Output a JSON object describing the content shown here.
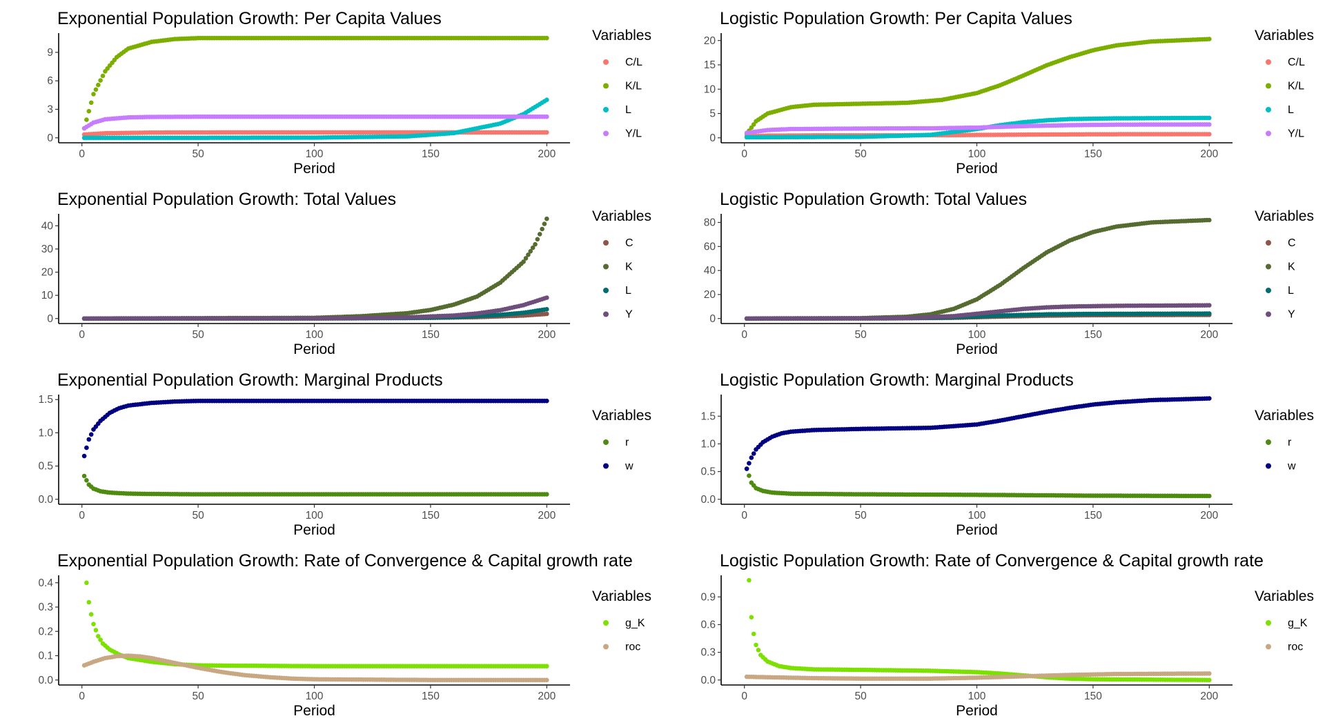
{
  "chart_data": [
    {
      "type": "scatter",
      "title": "Exponential Population Growth: Per Capita Values",
      "xlabel": "Period",
      "ylabel": "",
      "xlim": [
        0,
        200
      ],
      "ylim": [
        0,
        10.5
      ],
      "xticks": [
        0,
        50,
        100,
        150,
        200
      ],
      "yticks": [
        0,
        3,
        6,
        9
      ],
      "legend_title": "Variables",
      "legend_position": "right",
      "grid": false,
      "series": [
        {
          "name": "C/L",
          "color": "#F8766D",
          "x": [
            1,
            10,
            30,
            60,
            100,
            150,
            200
          ],
          "y": [
            0.35,
            0.48,
            0.55,
            0.57,
            0.57,
            0.57,
            0.57
          ]
        },
        {
          "name": "K/L",
          "color": "#7CAE00",
          "x": [
            1,
            5,
            10,
            15,
            20,
            30,
            40,
            50,
            75,
            100,
            150,
            200
          ],
          "y": [
            1.0,
            4.6,
            7.0,
            8.5,
            9.4,
            10.1,
            10.4,
            10.5,
            10.5,
            10.5,
            10.5,
            10.5
          ]
        },
        {
          "name": "L",
          "color": "#00BFC4",
          "x": [
            1,
            50,
            100,
            140,
            160,
            180,
            190,
            200
          ],
          "y": [
            0.0,
            0.0,
            0.02,
            0.15,
            0.5,
            1.5,
            2.5,
            4.0
          ]
        },
        {
          "name": "Y/L",
          "color": "#C77CFF",
          "x": [
            1,
            5,
            10,
            20,
            30,
            50,
            100,
            150,
            200
          ],
          "y": [
            1.0,
            1.6,
            1.95,
            2.15,
            2.2,
            2.22,
            2.22,
            2.22,
            2.22
          ]
        }
      ]
    },
    {
      "type": "scatter",
      "title": "Logistic Population Growth: Per Capita Values",
      "xlabel": "Period",
      "ylabel": "",
      "xlim": [
        0,
        200
      ],
      "ylim": [
        0,
        20.5
      ],
      "xticks": [
        0,
        50,
        100,
        150,
        200
      ],
      "yticks": [
        0,
        5,
        10,
        15,
        20
      ],
      "legend_title": "Variables",
      "legend_position": "right",
      "grid": false,
      "series": [
        {
          "name": "C/L",
          "color": "#F8766D",
          "x": [
            1,
            10,
            30,
            60,
            90,
            110,
            130,
            150,
            200
          ],
          "y": [
            0.3,
            0.45,
            0.5,
            0.5,
            0.55,
            0.62,
            0.68,
            0.72,
            0.75
          ]
        },
        {
          "name": "K/L",
          "color": "#7CAE00",
          "x": [
            1,
            5,
            10,
            20,
            30,
            50,
            70,
            85,
            100,
            110,
            120,
            130,
            140,
            150,
            160,
            175,
            200
          ],
          "y": [
            0.8,
            3.4,
            5.0,
            6.3,
            6.8,
            7.0,
            7.2,
            7.8,
            9.2,
            10.8,
            12.8,
            14.9,
            16.6,
            18.0,
            19.0,
            19.8,
            20.3
          ]
        },
        {
          "name": "L",
          "color": "#00BFC4",
          "x": [
            1,
            50,
            80,
            100,
            110,
            120,
            130,
            140,
            160,
            200
          ],
          "y": [
            0.1,
            0.2,
            0.6,
            1.8,
            2.6,
            3.2,
            3.6,
            3.85,
            4.0,
            4.1
          ]
        },
        {
          "name": "Y/L",
          "color": "#C77CFF",
          "x": [
            1,
            10,
            20,
            50,
            80,
            100,
            120,
            140,
            160,
            200
          ],
          "y": [
            1.0,
            1.6,
            1.8,
            1.9,
            1.95,
            2.1,
            2.4,
            2.6,
            2.7,
            2.75
          ]
        }
      ]
    },
    {
      "type": "scatter",
      "title": "Exponential Population Growth: Total Values",
      "xlabel": "Period",
      "ylabel": "",
      "xlim": [
        0,
        200
      ],
      "ylim": [
        0,
        43
      ],
      "xticks": [
        0,
        50,
        100,
        150,
        200
      ],
      "yticks": [
        0,
        10,
        20,
        30,
        40
      ],
      "legend_title": "Variables",
      "legend_position": "right",
      "grid": false,
      "series": [
        {
          "name": "C",
          "color": "#8C564B",
          "x": [
            1,
            100,
            150,
            170,
            190,
            200
          ],
          "y": [
            0.0,
            0.04,
            0.3,
            0.6,
            1.3,
            2.0
          ]
        },
        {
          "name": "K",
          "color": "#556B2F",
          "x": [
            1,
            100,
            120,
            140,
            150,
            160,
            170,
            180,
            190,
            195,
            200
          ],
          "y": [
            0.0,
            0.3,
            1.0,
            2.3,
            3.7,
            6.0,
            9.5,
            15.5,
            24.5,
            32.0,
            43.0
          ]
        },
        {
          "name": "L",
          "color": "#006D6F",
          "x": [
            1,
            100,
            140,
            160,
            180,
            190,
            200
          ],
          "y": [
            0.0,
            0.02,
            0.25,
            0.6,
            1.6,
            2.5,
            4.0
          ]
        },
        {
          "name": "Y",
          "color": "#6E4E7A",
          "x": [
            1,
            100,
            140,
            160,
            170,
            180,
            190,
            200
          ],
          "y": [
            0.0,
            0.05,
            0.5,
            1.3,
            2.2,
            3.6,
            5.8,
            9.0
          ]
        }
      ]
    },
    {
      "type": "scatter",
      "title": "Logistic Population Growth: Total Values",
      "xlabel": "Period",
      "ylabel": "",
      "xlim": [
        0,
        200
      ],
      "ylim": [
        0,
        83
      ],
      "xticks": [
        0,
        50,
        100,
        150,
        200
      ],
      "yticks": [
        0,
        20,
        40,
        60,
        80
      ],
      "legend_title": "Variables",
      "legend_position": "right",
      "grid": false,
      "series": [
        {
          "name": "C",
          "color": "#8C564B",
          "x": [
            1,
            60,
            90,
            110,
            130,
            150,
            200
          ],
          "y": [
            0.0,
            0.1,
            0.6,
            1.6,
            2.4,
            2.8,
            3.0
          ]
        },
        {
          "name": "K",
          "color": "#556B2F",
          "x": [
            1,
            50,
            70,
            80,
            90,
            100,
            110,
            120,
            130,
            140,
            150,
            160,
            175,
            200
          ],
          "y": [
            0.0,
            0.3,
            1.5,
            3.5,
            8.0,
            16.0,
            28.0,
            42.0,
            55.0,
            65.0,
            72.0,
            76.5,
            80.0,
            82.0
          ]
        },
        {
          "name": "L",
          "color": "#006D6F",
          "x": [
            1,
            60,
            90,
            110,
            130,
            150,
            200
          ],
          "y": [
            0.0,
            0.2,
            1.0,
            2.5,
            3.5,
            3.9,
            4.1
          ]
        },
        {
          "name": "Y",
          "color": "#6E4E7A",
          "x": [
            1,
            50,
            70,
            90,
            100,
            110,
            120,
            130,
            140,
            160,
            200
          ],
          "y": [
            0.0,
            0.1,
            0.5,
            2.0,
            4.0,
            6.0,
            8.0,
            9.3,
            10.0,
            10.6,
            11.0
          ]
        }
      ]
    },
    {
      "type": "scatter",
      "title": "Exponential Population Growth: Marginal Products",
      "xlabel": "Period",
      "ylabel": "",
      "xlim": [
        0,
        200
      ],
      "ylim": [
        0,
        1.5
      ],
      "xticks": [
        0,
        50,
        100,
        150,
        200
      ],
      "yticks": [
        0.0,
        0.5,
        1.0,
        1.5
      ],
      "legend_title": "Variables",
      "legend_position": "right",
      "grid": false,
      "series": [
        {
          "name": "r",
          "color": "#4D8C0F",
          "x": [
            1,
            3,
            5,
            8,
            12,
            20,
            30,
            50,
            100,
            200
          ],
          "y": [
            0.35,
            0.22,
            0.16,
            0.12,
            0.1,
            0.085,
            0.08,
            0.075,
            0.075,
            0.075
          ]
        },
        {
          "name": "w",
          "color": "#000080",
          "x": [
            1,
            3,
            5,
            8,
            12,
            16,
            20,
            30,
            40,
            50,
            100,
            200
          ],
          "y": [
            0.65,
            0.9,
            1.05,
            1.18,
            1.3,
            1.37,
            1.41,
            1.45,
            1.47,
            1.48,
            1.48,
            1.48
          ]
        }
      ]
    },
    {
      "type": "scatter",
      "title": "Logistic Population Growth: Marginal Products",
      "xlabel": "Period",
      "ylabel": "",
      "xlim": [
        0,
        200
      ],
      "ylim": [
        0,
        1.8
      ],
      "xticks": [
        0,
        50,
        100,
        150,
        200
      ],
      "yticks": [
        0.0,
        0.5,
        1.0,
        1.5
      ],
      "legend_title": "Variables",
      "legend_position": "right",
      "grid": false,
      "series": [
        {
          "name": "r",
          "color": "#4D8C0F",
          "x": [
            1,
            3,
            5,
            8,
            12,
            20,
            50,
            100,
            150,
            200
          ],
          "y": [
            0.55,
            0.3,
            0.2,
            0.15,
            0.12,
            0.1,
            0.09,
            0.08,
            0.065,
            0.06
          ]
        },
        {
          "name": "w",
          "color": "#000080",
          "x": [
            1,
            3,
            5,
            8,
            12,
            16,
            20,
            30,
            50,
            80,
            100,
            110,
            120,
            130,
            140,
            150,
            160,
            175,
            200
          ],
          "y": [
            0.55,
            0.75,
            0.9,
            1.03,
            1.13,
            1.19,
            1.22,
            1.25,
            1.27,
            1.29,
            1.35,
            1.42,
            1.5,
            1.58,
            1.65,
            1.71,
            1.75,
            1.79,
            1.82
          ]
        }
      ]
    },
    {
      "type": "scatter",
      "title": "Exponential Population Growth: Rate of Convergence & Capital growth rate",
      "xlabel": "Period",
      "ylabel": "",
      "xlim": [
        0,
        200
      ],
      "ylim": [
        0,
        0.41
      ],
      "xticks": [
        0,
        50,
        100,
        150,
        200
      ],
      "yticks": [
        0.0,
        0.1,
        0.2,
        0.3,
        0.4
      ],
      "legend_title": "Variables",
      "legend_position": "right",
      "grid": false,
      "series": [
        {
          "name": "g_K",
          "color": "#7CE000",
          "x": [
            2,
            3,
            4,
            5,
            7,
            9,
            12,
            16,
            20,
            30,
            40,
            50,
            100,
            200
          ],
          "y": [
            0.4,
            0.32,
            0.27,
            0.23,
            0.18,
            0.15,
            0.125,
            0.105,
            0.09,
            0.075,
            0.065,
            0.06,
            0.057,
            0.057
          ]
        },
        {
          "name": "roc",
          "color": "#C8A882",
          "x": [
            1,
            5,
            10,
            15,
            20,
            25,
            30,
            40,
            50,
            60,
            70,
            80,
            90,
            100,
            150,
            200
          ],
          "y": [
            0.06,
            0.075,
            0.09,
            0.098,
            0.1,
            0.097,
            0.09,
            0.07,
            0.05,
            0.033,
            0.02,
            0.012,
            0.006,
            0.003,
            0.0,
            0.0
          ]
        }
      ]
    },
    {
      "type": "scatter",
      "title": "Logistic Population Growth: Rate of Convergence & Capital growth rate",
      "xlabel": "Period",
      "ylabel": "",
      "xlim": [
        0,
        200
      ],
      "ylim": [
        0,
        1.08
      ],
      "xticks": [
        0,
        50,
        100,
        150,
        200
      ],
      "yticks": [
        0.0,
        0.3,
        0.6,
        0.9
      ],
      "legend_title": "Variables",
      "legend_position": "right",
      "grid": false,
      "series": [
        {
          "name": "g_K",
          "color": "#7CE000",
          "x": [
            2,
            3,
            4,
            5,
            7,
            10,
            15,
            20,
            30,
            50,
            80,
            100,
            110,
            120,
            130,
            140,
            150,
            200
          ],
          "y": [
            1.08,
            0.68,
            0.5,
            0.38,
            0.27,
            0.2,
            0.15,
            0.13,
            0.115,
            0.11,
            0.1,
            0.085,
            0.07,
            0.05,
            0.03,
            0.015,
            0.008,
            0.0
          ]
        },
        {
          "name": "roc",
          "color": "#C8A882",
          "x": [
            1,
            10,
            30,
            50,
            80,
            100,
            120,
            140,
            160,
            200
          ],
          "y": [
            0.035,
            0.03,
            0.02,
            0.015,
            0.015,
            0.025,
            0.04,
            0.055,
            0.065,
            0.07
          ]
        }
      ]
    }
  ]
}
